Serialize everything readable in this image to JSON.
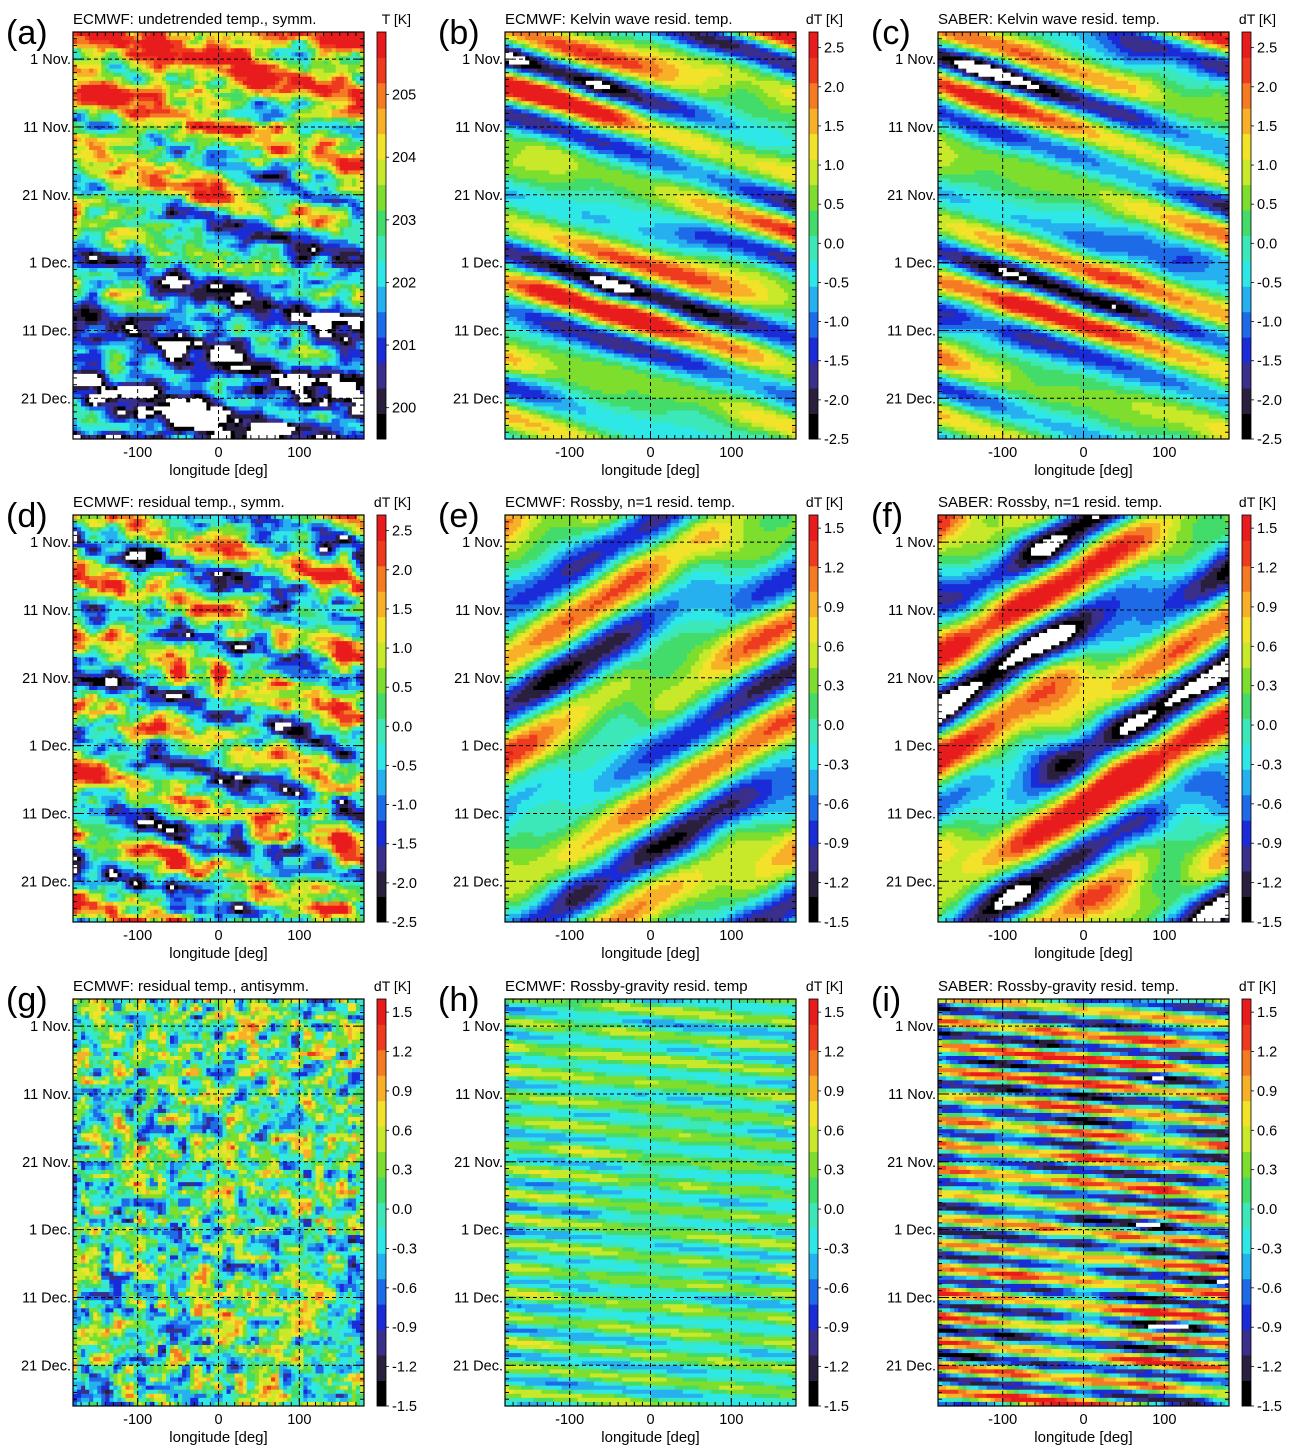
{
  "figure": {
    "description_note": "",
    "panels": [
      {
        "id": "a",
        "letter": "(a)",
        "title": "ECMWF: undetrended temp., symm.",
        "cbar_label": "T [K]",
        "variable": "undetrended",
        "pattern": "kelvin_raw",
        "zlim": [
          199.5,
          206.0
        ],
        "cbar_ticks": [
          "200",
          "201",
          "202",
          "203",
          "204",
          "205"
        ],
        "cbar_tick_values": [
          200,
          201,
          202,
          203,
          204,
          205
        ]
      },
      {
        "id": "b",
        "letter": "(b)",
        "title": "ECMWF: Kelvin wave resid. temp.",
        "cbar_label": "dT [K]",
        "variable": "residual",
        "pattern": "kelvin_smooth",
        "zlim": [
          -2.5,
          2.7
        ],
        "cbar_ticks": [
          "2.5",
          "2.0",
          "1.5",
          "1.0",
          "0.5",
          "0.0",
          "-0.5",
          "-1.0",
          "-1.5",
          "-2.0",
          "-2.5"
        ],
        "cbar_tick_values": [
          2.5,
          2.0,
          1.5,
          1.0,
          0.5,
          0.0,
          -0.5,
          -1.0,
          -1.5,
          -2.0,
          -2.5
        ]
      },
      {
        "id": "c",
        "letter": "(c)",
        "title": "SABER: Kelvin wave resid. temp.",
        "cbar_label": "dT [K]",
        "variable": "residual",
        "pattern": "kelvin_saber",
        "zlim": [
          -2.5,
          2.7
        ],
        "cbar_ticks": [
          "2.5",
          "2.0",
          "1.5",
          "1.0",
          "0.5",
          "0.0",
          "-0.5",
          "-1.0",
          "-1.5",
          "-2.0",
          "-2.5"
        ],
        "cbar_tick_values": [
          2.5,
          2.0,
          1.5,
          1.0,
          0.5,
          0.0,
          -0.5,
          -1.0,
          -1.5,
          -2.0,
          -2.5
        ]
      },
      {
        "id": "d",
        "letter": "(d)",
        "title": "ECMWF: residual temp., symm.",
        "cbar_label": "dT [K]",
        "variable": "residual",
        "pattern": "kelvin_noisy",
        "zlim": [
          -2.5,
          2.7
        ],
        "cbar_ticks": [
          "2.5",
          "2.0",
          "1.5",
          "1.0",
          "0.5",
          "0.0",
          "-0.5",
          "-1.0",
          "-1.5",
          "-2.0",
          "-2.5"
        ],
        "cbar_tick_values": [
          2.5,
          2.0,
          1.5,
          1.0,
          0.5,
          0.0,
          -0.5,
          -1.0,
          -1.5,
          -2.0,
          -2.5
        ]
      },
      {
        "id": "e",
        "letter": "(e)",
        "title": "ECMWF: Rossby, n=1 resid. temp.",
        "cbar_label": "dT [K]",
        "variable": "residual",
        "pattern": "rossby_smooth",
        "zlim": [
          -1.5,
          1.6
        ],
        "cbar_ticks": [
          "1.5",
          "1.2",
          "0.9",
          "0.6",
          "0.3",
          "0.0",
          "-0.3",
          "-0.6",
          "-0.9",
          "-1.2",
          "-1.5"
        ],
        "cbar_tick_values": [
          1.5,
          1.2,
          0.9,
          0.6,
          0.3,
          0.0,
          -0.3,
          -0.6,
          -0.9,
          -1.2,
          -1.5
        ]
      },
      {
        "id": "f",
        "letter": "(f)",
        "title": "SABER: Rossby, n=1 resid. temp.",
        "cbar_label": "dT [K]",
        "variable": "residual",
        "pattern": "rossby_saber",
        "zlim": [
          -1.5,
          1.6
        ],
        "cbar_ticks": [
          "1.5",
          "1.2",
          "0.9",
          "0.6",
          "0.3",
          "0.0",
          "-0.3",
          "-0.6",
          "-0.9",
          "-1.2",
          "-1.5"
        ],
        "cbar_tick_values": [
          1.5,
          1.2,
          0.9,
          0.6,
          0.3,
          0.0,
          -0.3,
          -0.6,
          -0.9,
          -1.2,
          -1.5
        ]
      },
      {
        "id": "g",
        "letter": "(g)",
        "title": "ECMWF: residual temp., antisymm.",
        "cbar_label": "dT [K]",
        "variable": "residual",
        "pattern": "noise",
        "zlim": [
          -1.5,
          1.6
        ],
        "cbar_ticks": [
          "1.5",
          "1.2",
          "0.9",
          "0.6",
          "0.3",
          "0.0",
          "-0.3",
          "-0.6",
          "-0.9",
          "-1.2",
          "-1.5"
        ],
        "cbar_tick_values": [
          1.5,
          1.2,
          0.9,
          0.6,
          0.3,
          0.0,
          -0.3,
          -0.6,
          -0.9,
          -1.2,
          -1.5
        ]
      },
      {
        "id": "h",
        "letter": "(h)",
        "title": "ECMWF: Rossby-gravity resid. temp",
        "cbar_label": "dT [K]",
        "variable": "residual",
        "pattern": "mrg_smooth",
        "zlim": [
          -1.5,
          1.6
        ],
        "cbar_ticks": [
          "1.5",
          "1.2",
          "0.9",
          "0.6",
          "0.3",
          "0.0",
          "-0.3",
          "-0.6",
          "-0.9",
          "-1.2",
          "-1.5"
        ],
        "cbar_tick_values": [
          1.5,
          1.2,
          0.9,
          0.6,
          0.3,
          0.0,
          -0.3,
          -0.6,
          -0.9,
          -1.2,
          -1.5
        ]
      },
      {
        "id": "i",
        "letter": "(i)",
        "title": "SABER: Rossby-gravity resid. temp.",
        "cbar_label": "dT [K]",
        "variable": "residual",
        "pattern": "mrg_saber",
        "zlim": [
          -1.5,
          1.6
        ],
        "cbar_ticks": [
          "1.5",
          "1.2",
          "0.9",
          "0.6",
          "0.3",
          "0.0",
          "-0.3",
          "-0.6",
          "-0.9",
          "-1.2",
          "-1.5"
        ],
        "cbar_tick_values": [
          1.5,
          1.2,
          0.9,
          0.6,
          0.3,
          0.0,
          -0.3,
          -0.6,
          -0.9,
          -1.2,
          -1.5
        ]
      }
    ],
    "x_axis": {
      "label": "longitude [deg]",
      "range": [
        -180,
        180
      ],
      "ticks": [
        "-100",
        "0",
        "100"
      ],
      "tick_values": [
        -100,
        0,
        100
      ]
    },
    "y_axis": {
      "ticks": [
        "1 Nov.",
        "11 Nov.",
        "21 Nov.",
        "1 Dec.",
        "11 Dec.",
        "21 Dec."
      ],
      "tick_values": [
        4,
        14,
        24,
        34,
        44,
        54
      ],
      "range": [
        0,
        60
      ],
      "reversed": true
    }
  },
  "chart_data": [
    {
      "type": "heatmap",
      "title": "ECMWF: undetrended temp., symm.",
      "xlabel": "longitude [deg]",
      "zlabel": "T [K]",
      "xlim": [
        -180,
        180
      ],
      "x_ticks": [
        -100,
        0,
        100
      ],
      "y_ticks": [
        "1 Nov.",
        "11 Nov.",
        "21 Nov.",
        "1 Dec.",
        "11 Dec.",
        "21 Dec."
      ],
      "z_ticks": [
        200,
        201,
        202,
        203,
        204,
        205
      ],
      "grid": true
    },
    {
      "type": "heatmap",
      "title": "ECMWF: Kelvin wave resid. temp.",
      "xlabel": "longitude [deg]",
      "zlabel": "dT [K]",
      "xlim": [
        -180,
        180
      ],
      "x_ticks": [
        -100,
        0,
        100
      ],
      "y_ticks": [
        "1 Nov.",
        "11 Nov.",
        "21 Nov.",
        "1 Dec.",
        "11 Dec.",
        "21 Dec."
      ],
      "z_ticks": [
        -2.5,
        -2.0,
        -1.5,
        -1.0,
        -0.5,
        0.0,
        0.5,
        1.0,
        1.5,
        2.0,
        2.5
      ],
      "grid": true
    },
    {
      "type": "heatmap",
      "title": "SABER: Kelvin wave resid. temp.",
      "xlabel": "longitude [deg]",
      "zlabel": "dT [K]",
      "xlim": [
        -180,
        180
      ],
      "x_ticks": [
        -100,
        0,
        100
      ],
      "y_ticks": [
        "1 Nov.",
        "11 Nov.",
        "21 Nov.",
        "1 Dec.",
        "11 Dec.",
        "21 Dec."
      ],
      "z_ticks": [
        -2.5,
        -2.0,
        -1.5,
        -1.0,
        -0.5,
        0.0,
        0.5,
        1.0,
        1.5,
        2.0,
        2.5
      ],
      "grid": true
    },
    {
      "type": "heatmap",
      "title": "ECMWF: residual temp., symm.",
      "xlabel": "longitude [deg]",
      "zlabel": "dT [K]",
      "xlim": [
        -180,
        180
      ],
      "x_ticks": [
        -100,
        0,
        100
      ],
      "y_ticks": [
        "1 Nov.",
        "11 Nov.",
        "21 Nov.",
        "1 Dec.",
        "11 Dec.",
        "21 Dec."
      ],
      "z_ticks": [
        -2.5,
        -2.0,
        -1.5,
        -1.0,
        -0.5,
        0.0,
        0.5,
        1.0,
        1.5,
        2.0,
        2.5
      ],
      "grid": true
    },
    {
      "type": "heatmap",
      "title": "ECMWF: Rossby, n=1 resid. temp.",
      "xlabel": "longitude [deg]",
      "zlabel": "dT [K]",
      "xlim": [
        -180,
        180
      ],
      "x_ticks": [
        -100,
        0,
        100
      ],
      "y_ticks": [
        "1 Nov.",
        "11 Nov.",
        "21 Nov.",
        "1 Dec.",
        "11 Dec.",
        "21 Dec."
      ],
      "z_ticks": [
        -1.5,
        -1.2,
        -0.9,
        -0.6,
        -0.3,
        0.0,
        0.3,
        0.6,
        0.9,
        1.2,
        1.5
      ],
      "grid": true
    },
    {
      "type": "heatmap",
      "title": "SABER: Rossby, n=1 resid. temp.",
      "xlabel": "longitude [deg]",
      "zlabel": "dT [K]",
      "xlim": [
        -180,
        180
      ],
      "x_ticks": [
        -100,
        0,
        100
      ],
      "y_ticks": [
        "1 Nov.",
        "11 Nov.",
        "21 Nov.",
        "1 Dec.",
        "11 Dec.",
        "21 Dec."
      ],
      "z_ticks": [
        -1.5,
        -1.2,
        -0.9,
        -0.6,
        -0.3,
        0.0,
        0.3,
        0.6,
        0.9,
        1.2,
        1.5
      ],
      "grid": true
    },
    {
      "type": "heatmap",
      "title": "ECMWF: residual temp., antisymm.",
      "xlabel": "longitude [deg]",
      "zlabel": "dT [K]",
      "xlim": [
        -180,
        180
      ],
      "x_ticks": [
        -100,
        0,
        100
      ],
      "y_ticks": [
        "1 Nov.",
        "11 Nov.",
        "21 Nov.",
        "1 Dec.",
        "11 Dec.",
        "21 Dec."
      ],
      "z_ticks": [
        -1.5,
        -1.2,
        -0.9,
        -0.6,
        -0.3,
        0.0,
        0.3,
        0.6,
        0.9,
        1.2,
        1.5
      ],
      "grid": true
    },
    {
      "type": "heatmap",
      "title": "ECMWF: Rossby-gravity resid. temp",
      "xlabel": "longitude [deg]",
      "zlabel": "dT [K]",
      "xlim": [
        -180,
        180
      ],
      "x_ticks": [
        -100,
        0,
        100
      ],
      "y_ticks": [
        "1 Nov.",
        "11 Nov.",
        "21 Nov.",
        "1 Dec.",
        "11 Dec.",
        "21 Dec."
      ],
      "z_ticks": [
        -1.5,
        -1.2,
        -0.9,
        -0.6,
        -0.3,
        0.0,
        0.3,
        0.6,
        0.9,
        1.2,
        1.5
      ],
      "grid": true
    },
    {
      "type": "heatmap",
      "title": "SABER: Rossby-gravity resid. temp.",
      "xlabel": "longitude [deg]",
      "zlabel": "dT [K]",
      "xlim": [
        -180,
        180
      ],
      "x_ticks": [
        -100,
        0,
        100
      ],
      "y_ticks": [
        "1 Nov.",
        "11 Nov.",
        "21 Nov.",
        "1 Dec.",
        "11 Dec.",
        "21 Dec."
      ],
      "z_ticks": [
        -1.5,
        -1.2,
        -0.9,
        -0.6,
        -0.3,
        0.0,
        0.3,
        0.6,
        0.9,
        1.2,
        1.5
      ],
      "grid": true
    }
  ],
  "colormap": [
    "#000000",
    "#2a1f3d",
    "#3a2f8a",
    "#1a2bd8",
    "#1e6be8",
    "#26b0f0",
    "#2ee8e8",
    "#3ce8b8",
    "#43dc6a",
    "#7ede2e",
    "#c8e82a",
    "#f2e22a",
    "#f8b028",
    "#f47a24",
    "#ee3a1e",
    "#e81c1c"
  ]
}
